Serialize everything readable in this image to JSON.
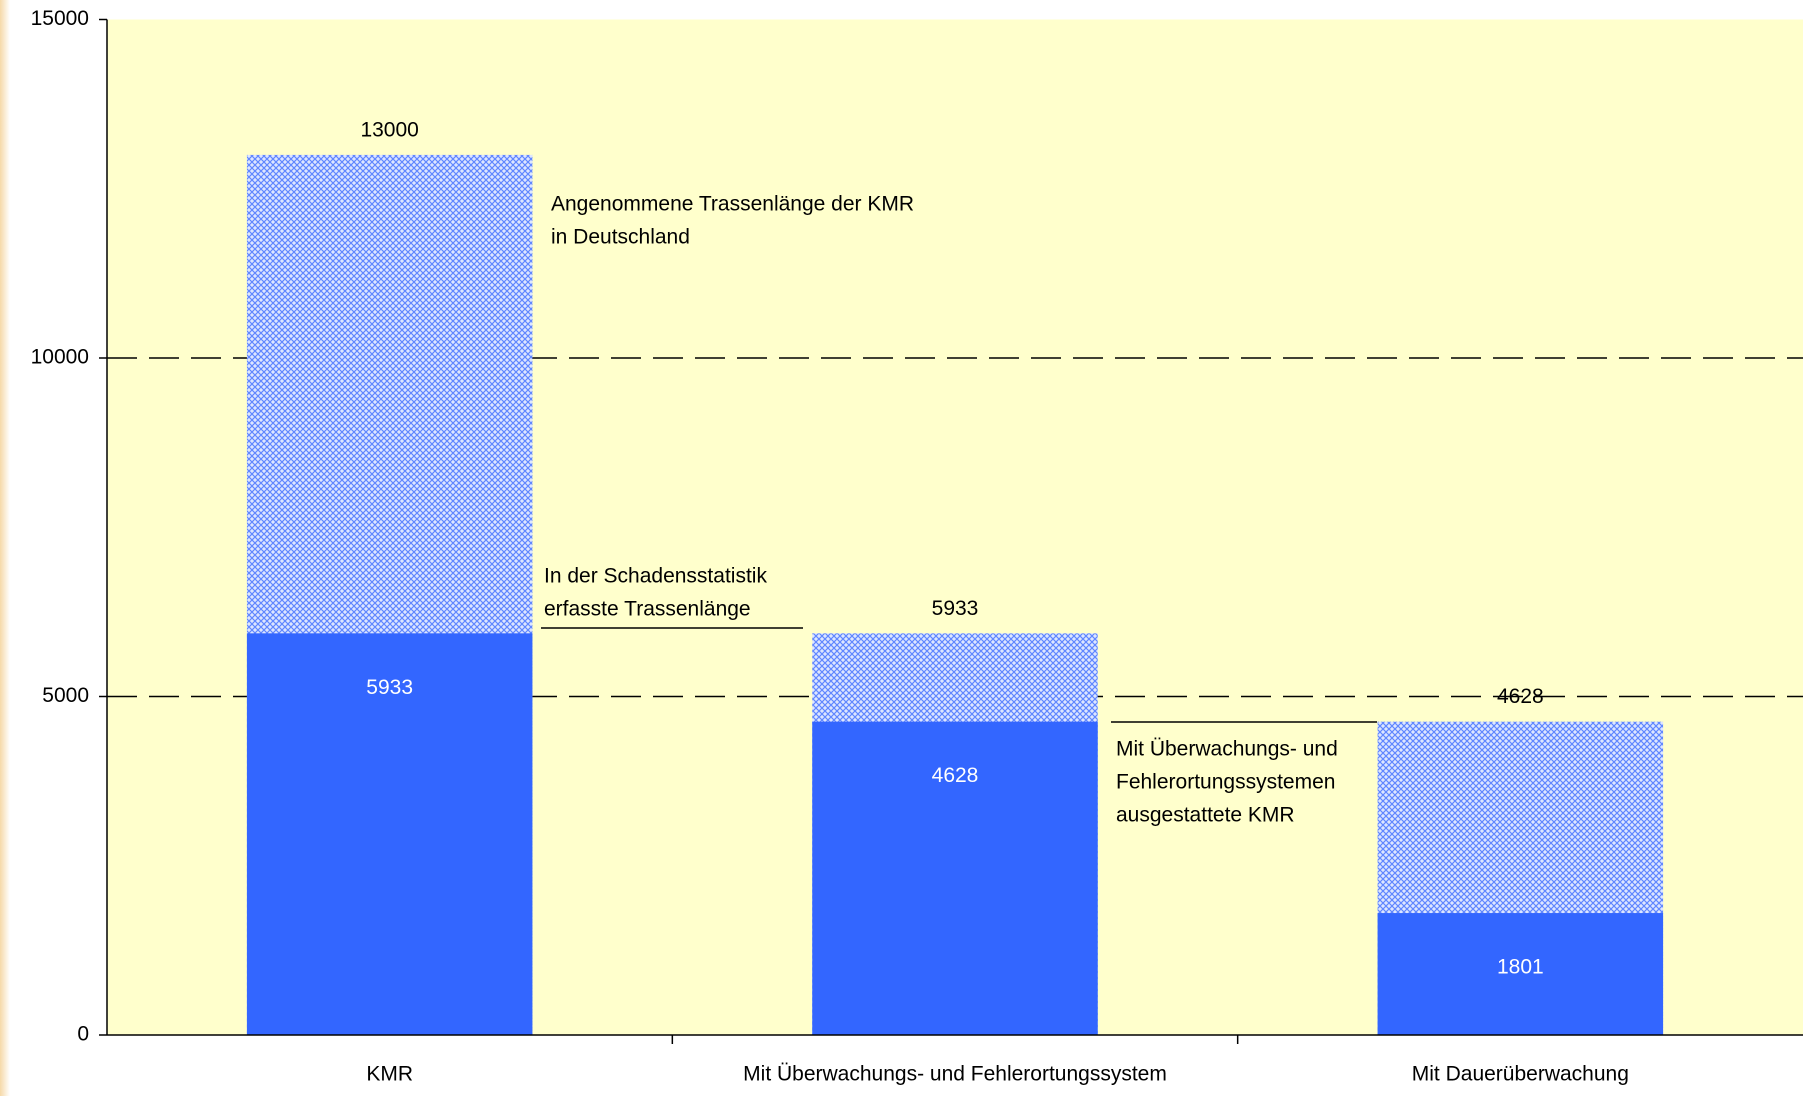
{
  "chart_data": {
    "type": "bar",
    "overlap": true,
    "categories": [
      "KMR",
      "Mit Überwachungs- und Fehlerortungssystem",
      "Mit Dauerüberwachung"
    ],
    "series": [
      {
        "color": "#3366ff",
        "pattern": "crosshatch",
        "values": [
          13000,
          5933,
          4628
        ]
      },
      {
        "color": "#3366ff",
        "values": [
          5933,
          4628,
          1801
        ]
      }
    ],
    "ylim": [
      0,
      15000
    ],
    "yticks": [
      0,
      5000,
      10000,
      15000
    ],
    "grid": true,
    "annotations": [
      {
        "lines": [
          "Angenommene Trassenlänge der KMR",
          "in Deutschland"
        ]
      },
      {
        "lines": [
          "In der Schadensstatistik",
          "erfasste Trassenlänge"
        ]
      },
      {
        "lines": [
          "Mit Überwachungs- und",
          "Fehlerortungssystemen",
          "ausgestattete KMR"
        ]
      }
    ]
  }
}
